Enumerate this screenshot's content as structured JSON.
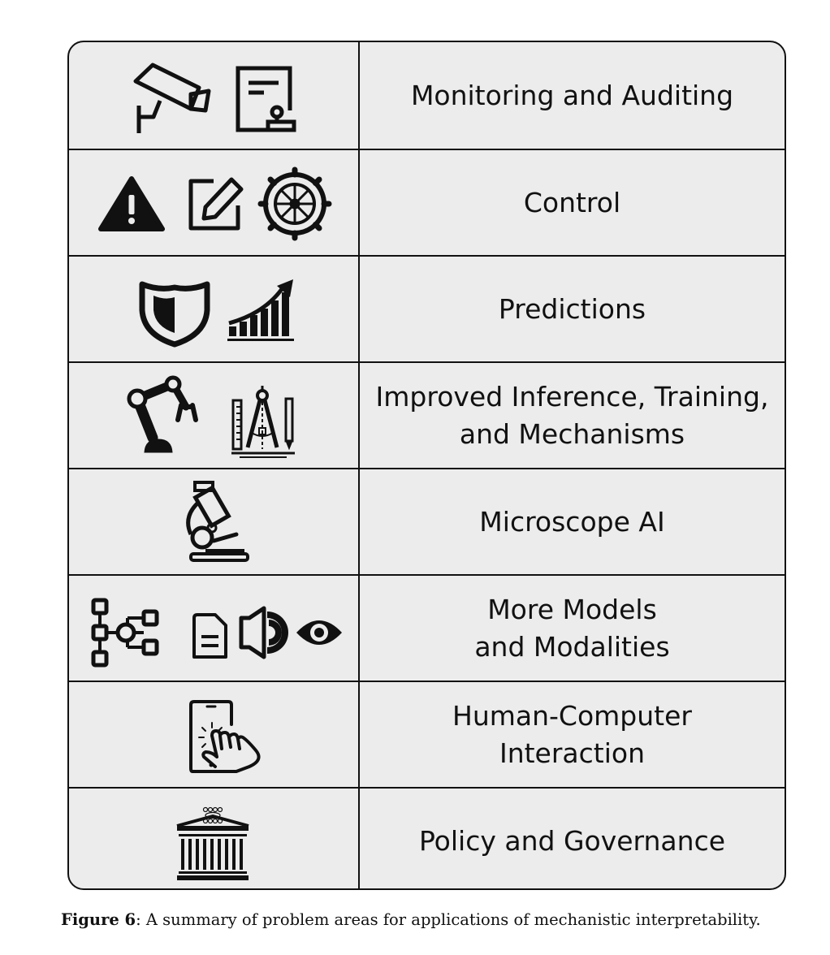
{
  "rows": [
    {
      "label": "Monitoring and Auditing",
      "icons": [
        "security-camera-icon",
        "certificate-document-icon"
      ]
    },
    {
      "label": "Control",
      "icons": [
        "warning-triangle-icon",
        "edit-pencil-icon",
        "ship-wheel-icon"
      ]
    },
    {
      "label": "Predictions",
      "icons": [
        "shield-icon",
        "growth-chart-icon"
      ]
    },
    {
      "label": "Improved Inference, Training,\nand Mechanisms",
      "icons": [
        "robot-arm-icon",
        "drafting-tools-icon"
      ]
    },
    {
      "label": "Microscope AI",
      "icons": [
        "microscope-icon"
      ]
    },
    {
      "label": "More Models\nand Modalities",
      "icons": [
        "network-nodes-icon",
        "document-icon",
        "speaker-icon",
        "eye-icon"
      ]
    },
    {
      "label": "Human-Computer\nInteraction",
      "icons": [
        "touch-phone-icon"
      ]
    },
    {
      "label": "Policy and Governance",
      "icons": [
        "government-building-icon"
      ]
    }
  ],
  "caption": {
    "label": "Figure 6",
    "text": ": A summary of problem areas for applications of mechanistic interpretability."
  }
}
